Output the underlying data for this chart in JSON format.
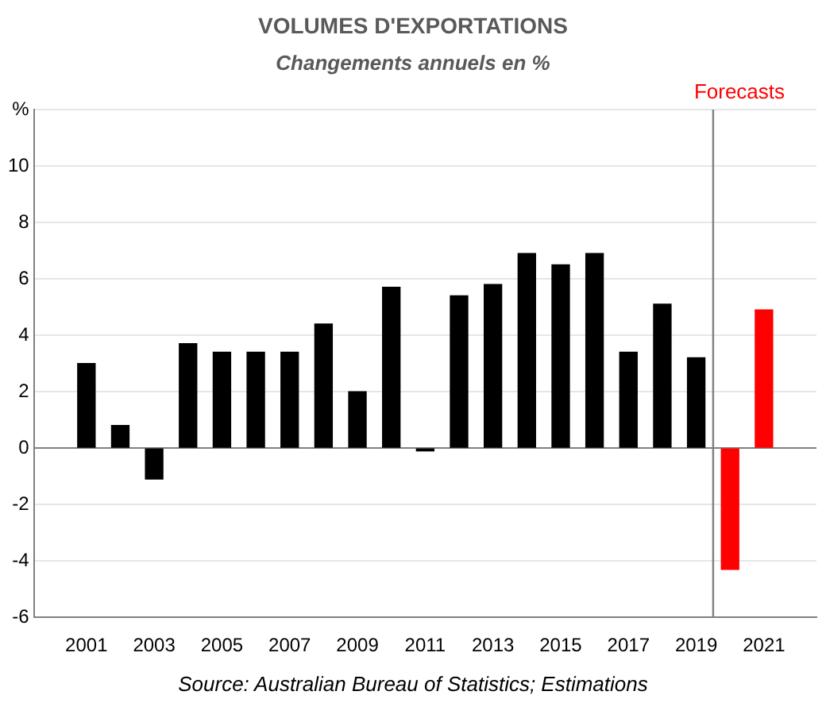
{
  "chart_data": {
    "type": "bar",
    "title": "VOLUMES D'EXPORTATIONS",
    "subtitle": "Changements annuels en %",
    "x": [
      2001,
      2002,
      2003,
      2004,
      2005,
      2006,
      2007,
      2008,
      2009,
      2010,
      2011,
      2012,
      2013,
      2014,
      2015,
      2016,
      2017,
      2018,
      2019,
      2020,
      2021
    ],
    "values": [
      3.0,
      0.8,
      -1.1,
      3.7,
      3.4,
      3.4,
      3.4,
      4.4,
      2.0,
      5.7,
      -0.1,
      5.4,
      5.8,
      6.9,
      6.5,
      6.9,
      3.4,
      5.1,
      3.2,
      -4.3,
      4.9
    ],
    "colors": [
      "#000000",
      "#000000",
      "#000000",
      "#000000",
      "#000000",
      "#000000",
      "#000000",
      "#000000",
      "#000000",
      "#000000",
      "#000000",
      "#000000",
      "#000000",
      "#000000",
      "#000000",
      "#000000",
      "#000000",
      "#000000",
      "#000000",
      "#ff0000",
      "#ff0000"
    ],
    "xlim": [
      2000.5,
      2021.5
    ],
    "xticks": [
      2001,
      2003,
      2005,
      2007,
      2009,
      2011,
      2013,
      2015,
      2017,
      2019,
      2021
    ],
    "ylim": [
      -6,
      12
    ],
    "yticks": [
      -6,
      -4,
      -2,
      0,
      2,
      4,
      6,
      8,
      10,
      {
        "value": 12,
        "label": "%"
      }
    ],
    "grid": "y",
    "legend": false,
    "ref_lines": [
      {
        "axis": "x",
        "value": 2019.5,
        "label": "Forecasts",
        "color": "#808080"
      }
    ],
    "annotations": [
      "Source: Australian Bureau of Statistics; Estimations"
    ]
  }
}
